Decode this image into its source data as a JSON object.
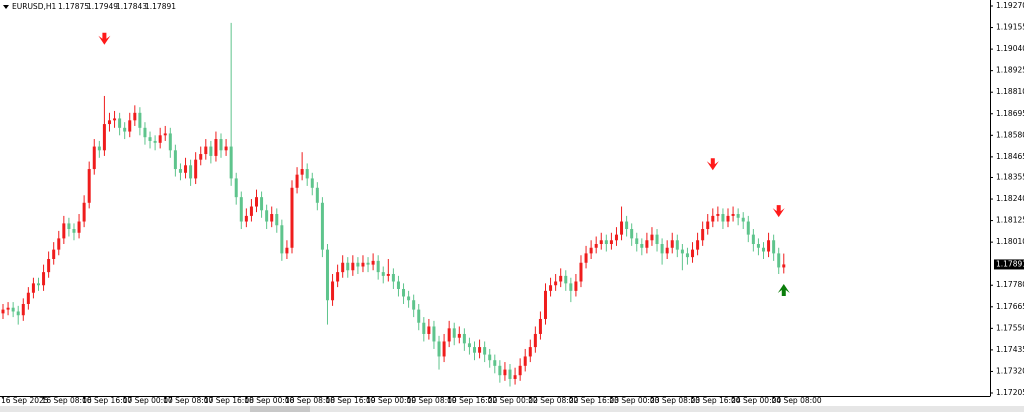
{
  "chart_data": {
    "type": "candlestick",
    "symbol": "EURUSD,H1",
    "bull_color": "#ef1c1c",
    "bear_color": "#5ec48c",
    "categories": [
      "16 Sep 2025",
      null,
      null,
      null,
      null,
      null,
      null,
      null,
      "16 Sep 08:00",
      null,
      null,
      null,
      null,
      null,
      null,
      null,
      "16 Sep 16:00",
      null,
      null,
      null,
      null,
      null,
      null,
      null,
      "17 Sep 00:00",
      null,
      null,
      null,
      null,
      null,
      null,
      null,
      "17 Sep 08:00",
      null,
      null,
      null,
      null,
      null,
      null,
      null,
      "17 Sep 16:00",
      null,
      null,
      null,
      null,
      null,
      null,
      null,
      "18 Sep 00:00",
      null,
      null,
      null,
      null,
      null,
      null,
      null,
      "18 Sep 08:00",
      null,
      null,
      null,
      null,
      null,
      null,
      null,
      "18 Sep 16:00",
      null,
      null,
      null,
      null,
      null,
      null,
      null,
      "19 Sep 00:00",
      null,
      null,
      null,
      null,
      null,
      null,
      null,
      "19 Sep 08:00",
      null,
      null,
      null,
      null,
      null,
      null,
      null,
      "19 Sep 16:00",
      null,
      null,
      null,
      null,
      null,
      null,
      null,
      "22 Sep 00:00",
      null,
      null,
      null,
      null,
      null,
      null,
      null,
      "22 Sep 08:00",
      null,
      null,
      null,
      null,
      null,
      null,
      null,
      "22 Sep 16:00",
      null,
      null,
      null,
      null,
      null,
      null,
      null,
      "23 Sep 00:00",
      null,
      null,
      null,
      null,
      null,
      null,
      null,
      "23 Sep 08:00",
      null,
      null,
      null,
      null,
      null,
      null,
      null,
      "23 Sep 16:00",
      null,
      null,
      null,
      null,
      null,
      null,
      null,
      "24 Sep 00:00",
      null,
      null,
      null,
      null,
      null,
      null,
      null,
      "24 Sep 08:00",
      null,
      null,
      null,
      null,
      null,
      null,
      null,
      null,
      null,
      null
    ],
    "candles": [
      [
        1.1763,
        1.1768,
        1.176,
        1.1765
      ],
      [
        1.1765,
        1.1769,
        1.1762,
        1.1766
      ],
      [
        1.1766,
        1.1769,
        1.1761,
        1.1764
      ],
      [
        1.1764,
        1.1767,
        1.1757,
        1.1762
      ],
      [
        1.1762,
        1.1771,
        1.1759,
        1.1768
      ],
      [
        1.1768,
        1.1777,
        1.1765,
        1.1774
      ],
      [
        1.1774,
        1.1782,
        1.1771,
        1.1779
      ],
      [
        1.1779,
        1.1782,
        1.1775,
        1.1778
      ],
      [
        1.1778,
        1.1789,
        1.1775,
        1.1785
      ],
      [
        1.1785,
        1.1796,
        1.1782,
        1.1792
      ],
      [
        1.1792,
        1.1801,
        1.1789,
        1.1797
      ],
      [
        1.1797,
        1.1807,
        1.1794,
        1.1803
      ],
      [
        1.1803,
        1.1815,
        1.18,
        1.1811
      ],
      [
        1.1811,
        1.1814,
        1.1804,
        1.1808
      ],
      [
        1.1808,
        1.1811,
        1.1802,
        1.1806
      ],
      [
        1.1806,
        1.1816,
        1.1803,
        1.1812
      ],
      [
        1.1812,
        1.1826,
        1.1809,
        1.1822
      ],
      [
        1.1822,
        1.1844,
        1.1819,
        1.184
      ],
      [
        1.184,
        1.1856,
        1.1837,
        1.1852
      ],
      [
        1.1852,
        1.1855,
        1.1846,
        1.185
      ],
      [
        1.185,
        1.1879,
        1.1847,
        1.1864
      ],
      [
        1.1864,
        1.187,
        1.186,
        1.1866
      ],
      [
        1.1866,
        1.1871,
        1.1862,
        1.1867
      ],
      [
        1.1867,
        1.187,
        1.1858,
        1.1862
      ],
      [
        1.1862,
        1.1865,
        1.1856,
        1.186
      ],
      [
        1.186,
        1.187,
        1.1857,
        1.1866
      ],
      [
        1.1866,
        1.1874,
        1.1863,
        1.187
      ],
      [
        1.187,
        1.1873,
        1.1858,
        1.1862
      ],
      [
        1.1862,
        1.1865,
        1.1853,
        1.1857
      ],
      [
        1.1857,
        1.186,
        1.1851,
        1.1855
      ],
      [
        1.1855,
        1.1858,
        1.185,
        1.1854
      ],
      [
        1.1854,
        1.1862,
        1.1851,
        1.1858
      ],
      [
        1.1858,
        1.1863,
        1.1855,
        1.1859
      ],
      [
        1.1859,
        1.1862,
        1.1846,
        1.185
      ],
      [
        1.185,
        1.1853,
        1.1836,
        1.184
      ],
      [
        1.184,
        1.1843,
        1.1834,
        1.1838
      ],
      [
        1.1838,
        1.1846,
        1.1835,
        1.1842
      ],
      [
        1.1842,
        1.1845,
        1.1831,
        1.1835
      ],
      [
        1.1835,
        1.1849,
        1.1832,
        1.1845
      ],
      [
        1.1845,
        1.1852,
        1.1842,
        1.1848
      ],
      [
        1.1848,
        1.1856,
        1.1845,
        1.1852
      ],
      [
        1.1852,
        1.1855,
        1.1843,
        1.1847
      ],
      [
        1.1847,
        1.186,
        1.1844,
        1.1856
      ],
      [
        1.1856,
        1.1859,
        1.1846,
        1.185
      ],
      [
        1.185,
        1.1856,
        1.1847,
        1.1852
      ],
      [
        1.1852,
        1.1918,
        1.1831,
        1.1835
      ],
      [
        1.1835,
        1.1838,
        1.1821,
        1.1825
      ],
      [
        1.1825,
        1.1828,
        1.1808,
        1.1812
      ],
      [
        1.1812,
        1.1819,
        1.1809,
        1.1815
      ],
      [
        1.1815,
        1.1824,
        1.1812,
        1.182
      ],
      [
        1.182,
        1.1829,
        1.1817,
        1.1825
      ],
      [
        1.1825,
        1.1828,
        1.1814,
        1.1818
      ],
      [
        1.1818,
        1.1821,
        1.1808,
        1.1812
      ],
      [
        1.1812,
        1.182,
        1.1809,
        1.1816
      ],
      [
        1.1816,
        1.1819,
        1.1806,
        1.181
      ],
      [
        1.181,
        1.1813,
        1.1791,
        1.1795
      ],
      [
        1.1795,
        1.1802,
        1.1792,
        1.1798
      ],
      [
        1.1798,
        1.1834,
        1.1795,
        1.183
      ],
      [
        1.183,
        1.1841,
        1.1827,
        1.1837
      ],
      [
        1.1837,
        1.1849,
        1.1834,
        1.184
      ],
      [
        1.184,
        1.1843,
        1.1831,
        1.1835
      ],
      [
        1.1835,
        1.1838,
        1.1826,
        1.183
      ],
      [
        1.183,
        1.1833,
        1.1818,
        1.1822
      ],
      [
        1.1822,
        1.1825,
        1.1793,
        1.1797
      ],
      [
        1.1797,
        1.18,
        1.1757,
        1.177
      ],
      [
        1.177,
        1.1784,
        1.1767,
        1.178
      ],
      [
        1.178,
        1.1789,
        1.1777,
        1.1785
      ],
      [
        1.1785,
        1.1794,
        1.1782,
        1.179
      ],
      [
        1.179,
        1.1793,
        1.1782,
        1.1786
      ],
      [
        1.1786,
        1.1794,
        1.1783,
        1.179
      ],
      [
        1.179,
        1.1793,
        1.1784,
        1.1788
      ],
      [
        1.1788,
        1.1794,
        1.1785,
        1.179
      ],
      [
        1.179,
        1.1793,
        1.1785,
        1.1789
      ],
      [
        1.1789,
        1.1795,
        1.1786,
        1.1791
      ],
      [
        1.1791,
        1.1794,
        1.1781,
        1.1785
      ],
      [
        1.1785,
        1.1788,
        1.1779,
        1.1783
      ],
      [
        1.1783,
        1.1792,
        1.178,
        1.1784
      ],
      [
        1.1784,
        1.1787,
        1.1776,
        1.178
      ],
      [
        1.178,
        1.1783,
        1.1772,
        1.1776
      ],
      [
        1.1776,
        1.1779,
        1.1768,
        1.1772
      ],
      [
        1.1772,
        1.1775,
        1.1766,
        1.177
      ],
      [
        1.177,
        1.1773,
        1.1761,
        1.1765
      ],
      [
        1.1765,
        1.1768,
        1.1754,
        1.1758
      ],
      [
        1.1758,
        1.1761,
        1.1748,
        1.1752
      ],
      [
        1.1752,
        1.176,
        1.1749,
        1.1756
      ],
      [
        1.1756,
        1.1759,
        1.1744,
        1.1748
      ],
      [
        1.1748,
        1.1751,
        1.1733,
        1.174
      ],
      [
        1.174,
        1.1752,
        1.1737,
        1.1748
      ],
      [
        1.1748,
        1.1759,
        1.1745,
        1.1755
      ],
      [
        1.1755,
        1.1758,
        1.1746,
        1.175
      ],
      [
        1.175,
        1.1756,
        1.1747,
        1.1752
      ],
      [
        1.1752,
        1.1755,
        1.1743,
        1.1747
      ],
      [
        1.1747,
        1.175,
        1.1741,
        1.1745
      ],
      [
        1.1745,
        1.1748,
        1.1738,
        1.1742
      ],
      [
        1.1742,
        1.1749,
        1.1739,
        1.1745
      ],
      [
        1.1745,
        1.1748,
        1.1737,
        1.1741
      ],
      [
        1.1741,
        1.1744,
        1.1734,
        1.1738
      ],
      [
        1.1738,
        1.1741,
        1.1731,
        1.1735
      ],
      [
        1.1735,
        1.1738,
        1.1726,
        1.173
      ],
      [
        1.173,
        1.1737,
        1.1727,
        1.1733
      ],
      [
        1.1733,
        1.1736,
        1.1724,
        1.1728
      ],
      [
        1.1728,
        1.1734,
        1.1725,
        1.173
      ],
      [
        1.173,
        1.1739,
        1.1727,
        1.1735
      ],
      [
        1.1735,
        1.1744,
        1.1732,
        1.174
      ],
      [
        1.174,
        1.1749,
        1.1737,
        1.1745
      ],
      [
        1.1745,
        1.1756,
        1.1742,
        1.1752
      ],
      [
        1.1752,
        1.1764,
        1.1749,
        1.176
      ],
      [
        1.176,
        1.1779,
        1.1757,
        1.1775
      ],
      [
        1.1775,
        1.1782,
        1.1772,
        1.1778
      ],
      [
        1.1778,
        1.1784,
        1.1775,
        1.178
      ],
      [
        1.178,
        1.1787,
        1.1777,
        1.1783
      ],
      [
        1.1783,
        1.1786,
        1.1775,
        1.1779
      ],
      [
        1.1779,
        1.1782,
        1.1769,
        1.1775
      ],
      [
        1.1775,
        1.1784,
        1.1772,
        1.178
      ],
      [
        1.178,
        1.1794,
        1.1777,
        1.179
      ],
      [
        1.179,
        1.1799,
        1.1787,
        1.1795
      ],
      [
        1.1795,
        1.1802,
        1.1792,
        1.1798
      ],
      [
        1.1798,
        1.1804,
        1.1795,
        1.18
      ],
      [
        1.18,
        1.1806,
        1.1797,
        1.1802
      ],
      [
        1.1802,
        1.1805,
        1.1796,
        1.18
      ],
      [
        1.18,
        1.1806,
        1.1797,
        1.1802
      ],
      [
        1.1802,
        1.1809,
        1.1799,
        1.1805
      ],
      [
        1.1805,
        1.182,
        1.1802,
        1.1812
      ],
      [
        1.1812,
        1.1815,
        1.1804,
        1.1808
      ],
      [
        1.1808,
        1.1811,
        1.1799,
        1.1803
      ],
      [
        1.1803,
        1.1806,
        1.1796,
        1.18
      ],
      [
        1.18,
        1.1803,
        1.1794,
        1.1798
      ],
      [
        1.1798,
        1.1806,
        1.1795,
        1.1802
      ],
      [
        1.1802,
        1.1809,
        1.1799,
        1.1805
      ],
      [
        1.1805,
        1.1808,
        1.1796,
        1.18
      ],
      [
        1.18,
        1.1803,
        1.1789,
        1.1795
      ],
      [
        1.1795,
        1.1802,
        1.1792,
        1.1798
      ],
      [
        1.1798,
        1.1806,
        1.1795,
        1.1802
      ],
      [
        1.1802,
        1.1805,
        1.1793,
        1.1797
      ],
      [
        1.1797,
        1.18,
        1.1786,
        1.1795
      ],
      [
        1.1795,
        1.1798,
        1.1789,
        1.1793
      ],
      [
        1.1793,
        1.1801,
        1.179,
        1.1797
      ],
      [
        1.1797,
        1.1806,
        1.1794,
        1.1802
      ],
      [
        1.1802,
        1.1812,
        1.1799,
        1.1808
      ],
      [
        1.1808,
        1.1816,
        1.1805,
        1.1812
      ],
      [
        1.1812,
        1.1819,
        1.1809,
        1.1815
      ],
      [
        1.1815,
        1.182,
        1.1812,
        1.1816
      ],
      [
        1.1816,
        1.1819,
        1.1808,
        1.1812
      ],
      [
        1.1812,
        1.1819,
        1.1809,
        1.1815
      ],
      [
        1.1815,
        1.182,
        1.1812,
        1.1816
      ],
      [
        1.1816,
        1.1819,
        1.181,
        1.1814
      ],
      [
        1.1814,
        1.1817,
        1.1808,
        1.1812
      ],
      [
        1.1812,
        1.1815,
        1.1801,
        1.1805
      ],
      [
        1.1805,
        1.1808,
        1.1796,
        1.18
      ],
      [
        1.18,
        1.1803,
        1.1794,
        1.1798
      ],
      [
        1.1798,
        1.1801,
        1.1792,
        1.1796
      ],
      [
        1.1796,
        1.1806,
        1.1793,
        1.1802
      ],
      [
        1.1802,
        1.1805,
        1.1791,
        1.1795
      ],
      [
        1.1795,
        1.1798,
        1.1784,
        1.17875
      ],
      [
        1.17875,
        1.17949,
        1.17843,
        1.17891
      ]
    ],
    "ylim": [
      1.17189,
      1.19302
    ],
    "yticks": [
      {
        "value": 1.1927,
        "label": "1.19270"
      },
      1.19155,
      {
        "value": 1.1904,
        "label": "1.19040"
      },
      1.18925,
      {
        "value": 1.1881,
        "label": "1.18810"
      },
      1.18695,
      {
        "value": 1.1858,
        "label": "1.18580"
      },
      1.18465,
      1.18355,
      {
        "value": 1.1824,
        "label": "1.18240"
      },
      1.18125,
      {
        "value": 1.1801,
        "label": "1.18010"
      },
      {
        "value": 1.1778,
        "label": "1.17780"
      },
      1.17665,
      {
        "value": 1.1755,
        "label": "1.17550"
      },
      1.17435,
      {
        "value": 1.1732,
        "label": "1.17320"
      },
      1.17205
    ],
    "signals": [
      {
        "bar": 20,
        "price": 1.1909,
        "direction": "down",
        "color": "#ff1a1a"
      },
      {
        "bar": 140,
        "price": 1.1842,
        "direction": "down",
        "color": "#ff1a1a"
      },
      {
        "bar": 153,
        "price": 1.1817,
        "direction": "down",
        "color": "#ff1a1a"
      },
      {
        "bar": 154,
        "price": 1.1776,
        "direction": "up",
        "color": "#0a7d0a"
      }
    ]
  }
}
